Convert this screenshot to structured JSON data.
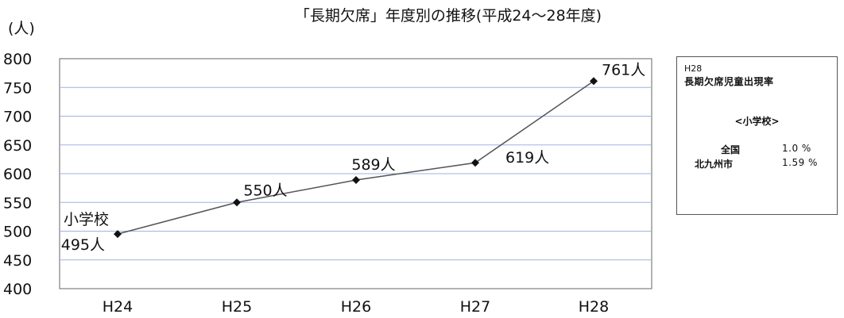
{
  "chart_data": {
    "type": "line",
    "title": "「長期欠席」年度別の推移(平成24〜28年度)",
    "ylabel": "(人)",
    "xlabel": "",
    "categories": [
      "H24",
      "H25",
      "H26",
      "H27",
      "H28"
    ],
    "series": [
      {
        "name": "小学校",
        "values": [
          495,
          550,
          589,
          619,
          761
        ],
        "data_labels": [
          "495人",
          "550人",
          "589人",
          "619人",
          "761人"
        ]
      }
    ],
    "ylim": [
      400,
      800
    ],
    "yticks": [
      400,
      450,
      500,
      550,
      600,
      650,
      700,
      750,
      800
    ],
    "grid": true,
    "marker": "diamond",
    "line_color": "#555555",
    "grid_color": "#9db4e0"
  },
  "side_box": {
    "year": "H28",
    "heading": "長期欠席児童出現率",
    "subheading": "<小学校>",
    "rows": [
      {
        "label": "全国",
        "value": "1.0 %"
      },
      {
        "label": "北九州市",
        "value": "1.59 %"
      }
    ]
  }
}
